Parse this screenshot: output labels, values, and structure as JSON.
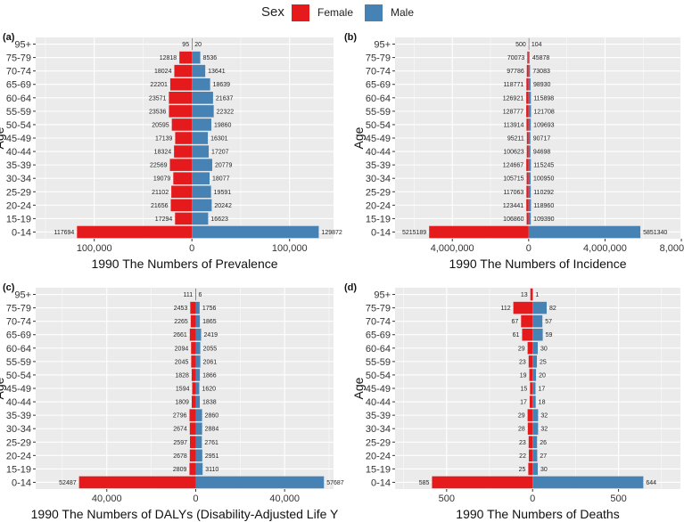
{
  "legend": {
    "title": "Sex",
    "female_label": "Female",
    "male_label": "Male"
  },
  "colors": {
    "female": "#E41A1C",
    "male": "#4682B4",
    "panel_bg": "#EBEBEB",
    "grid": "#FFFFFF"
  },
  "chart_data": [
    {
      "type": "bar",
      "orientation": "horizontal-population-pyramid",
      "tag": "(a)",
      "title": "",
      "xlabel": "1990 The Numbers of Prevalence",
      "ylabel": "Age",
      "categories": [
        "0-14",
        "15-19",
        "20-24",
        "25-29",
        "30-34",
        "35-39",
        "40-44",
        "45-49",
        "50-54",
        "55-59",
        "60-64",
        "65-69",
        "70-74",
        "75-79",
        "95+"
      ],
      "series": [
        {
          "name": "Female",
          "values": [
            117694,
            17294,
            21656,
            21102,
            19079,
            22569,
            18324,
            17139,
            20595,
            23536,
            23571,
            22201,
            18024,
            12818,
            95
          ]
        },
        {
          "name": "Male",
          "values": [
            129872,
            16623,
            20242,
            19591,
            18077,
            20779,
            17207,
            16301,
            19860,
            22322,
            21637,
            18639,
            13641,
            8536,
            20
          ]
        }
      ],
      "xlim": [
        -160000,
        145000
      ],
      "ticks": [
        -100000,
        0,
        100000
      ],
      "tick_labels": [
        "100,000",
        "0",
        "100,000"
      ]
    },
    {
      "type": "bar",
      "orientation": "horizontal-population-pyramid",
      "tag": "(b)",
      "title": "",
      "xlabel": "1990 The Numbers of Incidence",
      "ylabel": "Age",
      "categories": [
        "0-14",
        "15-19",
        "20-24",
        "25-29",
        "30-34",
        "35-39",
        "40-44",
        "45-49",
        "50-54",
        "55-59",
        "60-64",
        "65-69",
        "70-74",
        "75-79",
        "95+"
      ],
      "series": [
        {
          "name": "Female",
          "values": [
            5215189,
            106860,
            123441,
            117063,
            105715,
            124667,
            100623,
            95211,
            113914,
            128777,
            126921,
            118771,
            97786,
            70073,
            500
          ]
        },
        {
          "name": "Male",
          "values": [
            5851340,
            109390,
            118960,
            110292,
            100950,
            115245,
            94698,
            90717,
            109693,
            121708,
            115898,
            98930,
            73083,
            45878,
            104
          ]
        }
      ],
      "xlim": [
        -7000000,
        7950000
      ],
      "ticks": [
        -4000000,
        0,
        4000000,
        8000000
      ],
      "tick_labels": [
        "4,000,000",
        "0",
        "4,000,000",
        "8,000,000"
      ]
    },
    {
      "type": "bar",
      "orientation": "horizontal-population-pyramid",
      "tag": "(c)",
      "title": "",
      "xlabel": "1990 The Numbers of DALYs (Disability-Adjusted Life Y",
      "ylabel": "Age",
      "categories": [
        "0-14",
        "15-19",
        "20-24",
        "25-29",
        "30-34",
        "35-39",
        "40-44",
        "45-49",
        "50-54",
        "55-59",
        "60-64",
        "65-69",
        "70-74",
        "75-79",
        "95+"
      ],
      "series": [
        {
          "name": "Female",
          "values": [
            52487,
            2809,
            2678,
            2597,
            2674,
            2796,
            1809,
            1594,
            1828,
            2045,
            2094,
            2661,
            2265,
            2453,
            111
          ]
        },
        {
          "name": "Male",
          "values": [
            57687,
            3110,
            2951,
            2761,
            2884,
            2860,
            1838,
            1620,
            1866,
            2061,
            2055,
            2419,
            1865,
            1756,
            6
          ]
        }
      ],
      "xlim": [
        -72000,
        62000
      ],
      "ticks": [
        -40000,
        0,
        40000
      ],
      "tick_labels": [
        "40,000",
        "0",
        "40,000"
      ]
    },
    {
      "type": "bar",
      "orientation": "horizontal-population-pyramid",
      "tag": "(d)",
      "title": "",
      "xlabel": "1990 The Numbers of Deaths",
      "ylabel": "Age",
      "categories": [
        "0-14",
        "15-19",
        "20-24",
        "25-29",
        "30-34",
        "35-39",
        "40-44",
        "45-49",
        "50-54",
        "55-59",
        "60-64",
        "65-69",
        "70-74",
        "75-79",
        "95+"
      ],
      "series": [
        {
          "name": "Female",
          "values": [
            585,
            25,
            22,
            23,
            28,
            29,
            17,
            15,
            19,
            23,
            29,
            61,
            67,
            112,
            13
          ]
        },
        {
          "name": "Male",
          "values": [
            644,
            30,
            27,
            26,
            32,
            32,
            18,
            17,
            20,
            25,
            30,
            59,
            57,
            82,
            1
          ]
        }
      ],
      "xlim": [
        -800,
        860
      ],
      "ticks": [
        -500,
        0,
        500
      ],
      "tick_labels": [
        "500",
        "0",
        "500"
      ]
    }
  ]
}
